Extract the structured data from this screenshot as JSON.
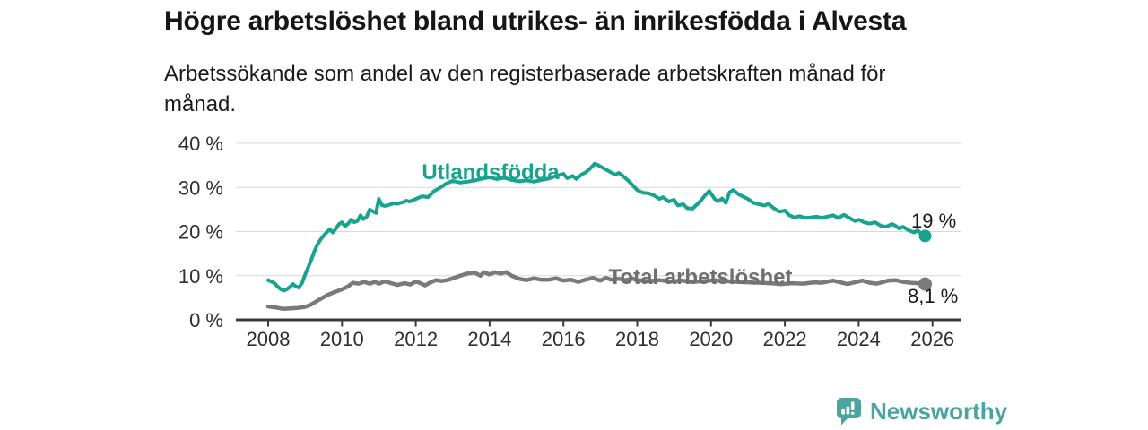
{
  "title": "Högre arbetslöshet bland utrikes- än inrikesfödda i Alvesta",
  "subtitle": "Arbetssökande som andel av den registerbaserade arbetskraften månad för månad.",
  "branding": {
    "logo_text": "Newsworthy"
  },
  "colors": {
    "accent_teal": "#18a38e",
    "line_gray": "#7a7a7a",
    "label_gray": "#6e6e6e",
    "axis": "#3a3a3a",
    "grid": "#d8d8d8",
    "text_dark": "#1a1a1a",
    "tick_text": "#2f2f2f",
    "brand_teal": "#4aa49f"
  },
  "chart_data": {
    "type": "line",
    "title": "Högre arbetslöshet bland utrikes- än inrikesfödda i Alvesta",
    "xlabel": "",
    "ylabel": "",
    "xlim": [
      2007.1,
      2026.8
    ],
    "ylim": [
      0,
      40
    ],
    "grid": "horizontal",
    "x_ticks": [
      2008,
      2010,
      2012,
      2014,
      2016,
      2018,
      2020,
      2022,
      2024,
      2026
    ],
    "x_tick_labels": [
      "2008",
      "2010",
      "2012",
      "2014",
      "2016",
      "2018",
      "2020",
      "2022",
      "2024",
      "2026"
    ],
    "y_ticks": [
      0,
      10,
      20,
      30,
      40
    ],
    "y_tick_labels": [
      "0 %",
      "10 %",
      "20 %",
      "30 %",
      "40 %"
    ],
    "series": [
      {
        "name": "Utlandsfödda",
        "color": "#18a38e",
        "end_label": "19 %",
        "points": [
          [
            2008.0,
            9.0
          ],
          [
            2008.08,
            8.7
          ],
          [
            2008.17,
            8.3
          ],
          [
            2008.25,
            7.6
          ],
          [
            2008.33,
            7.0
          ],
          [
            2008.42,
            6.6
          ],
          [
            2008.5,
            6.9
          ],
          [
            2008.58,
            7.4
          ],
          [
            2008.67,
            8.1
          ],
          [
            2008.75,
            7.6
          ],
          [
            2008.83,
            7.3
          ],
          [
            2008.92,
            8.4
          ],
          [
            2009.0,
            10.2
          ],
          [
            2009.08,
            11.8
          ],
          [
            2009.17,
            13.6
          ],
          [
            2009.25,
            15.5
          ],
          [
            2009.33,
            17.0
          ],
          [
            2009.42,
            18.2
          ],
          [
            2009.5,
            19.0
          ],
          [
            2009.58,
            19.8
          ],
          [
            2009.67,
            20.5
          ],
          [
            2009.75,
            19.8
          ],
          [
            2009.83,
            20.6
          ],
          [
            2009.92,
            21.7
          ],
          [
            2010.0,
            22.1
          ],
          [
            2010.08,
            21.2
          ],
          [
            2010.17,
            21.8
          ],
          [
            2010.25,
            22.7
          ],
          [
            2010.33,
            22.1
          ],
          [
            2010.42,
            22.4
          ],
          [
            2010.5,
            23.7
          ],
          [
            2010.58,
            22.8
          ],
          [
            2010.67,
            23.4
          ],
          [
            2010.75,
            25.0
          ],
          [
            2010.83,
            24.6
          ],
          [
            2010.92,
            24.2
          ],
          [
            2011.0,
            27.4
          ],
          [
            2011.08,
            26.0
          ],
          [
            2011.17,
            25.8
          ],
          [
            2011.25,
            26.0
          ],
          [
            2011.33,
            26.2
          ],
          [
            2011.42,
            26.4
          ],
          [
            2011.5,
            26.3
          ],
          [
            2011.58,
            26.5
          ],
          [
            2011.67,
            26.7
          ],
          [
            2011.75,
            27.0
          ],
          [
            2011.83,
            26.8
          ],
          [
            2011.92,
            27.1
          ],
          [
            2012.0,
            27.4
          ],
          [
            2012.17,
            28.0
          ],
          [
            2012.33,
            27.8
          ],
          [
            2012.5,
            29.2
          ],
          [
            2012.67,
            30.0
          ],
          [
            2012.83,
            30.9
          ],
          [
            2013.0,
            31.5
          ],
          [
            2013.2,
            31.1
          ],
          [
            2013.4,
            31.3
          ],
          [
            2013.6,
            31.6
          ],
          [
            2013.8,
            32.0
          ],
          [
            2014.0,
            32.3
          ],
          [
            2014.2,
            31.9
          ],
          [
            2014.4,
            32.2
          ],
          [
            2014.6,
            31.7
          ],
          [
            2014.8,
            31.4
          ],
          [
            2015.0,
            31.6
          ],
          [
            2015.2,
            31.3
          ],
          [
            2015.4,
            31.7
          ],
          [
            2015.6,
            32.0
          ],
          [
            2015.8,
            32.6
          ],
          [
            2016.0,
            33.1
          ],
          [
            2016.1,
            32.1
          ],
          [
            2016.25,
            32.6
          ],
          [
            2016.35,
            31.9
          ],
          [
            2016.5,
            33.0
          ],
          [
            2016.6,
            33.4
          ],
          [
            2016.7,
            34.1
          ],
          [
            2016.85,
            35.4
          ],
          [
            2016.95,
            35.0
          ],
          [
            2017.1,
            34.3
          ],
          [
            2017.25,
            33.6
          ],
          [
            2017.4,
            32.9
          ],
          [
            2017.5,
            33.3
          ],
          [
            2017.6,
            32.7
          ],
          [
            2017.75,
            31.6
          ],
          [
            2017.9,
            30.3
          ],
          [
            2018.0,
            29.4
          ],
          [
            2018.15,
            28.8
          ],
          [
            2018.3,
            28.7
          ],
          [
            2018.45,
            28.2
          ],
          [
            2018.6,
            27.4
          ],
          [
            2018.7,
            27.8
          ],
          [
            2018.85,
            26.8
          ],
          [
            2019.0,
            27.2
          ],
          [
            2019.1,
            25.9
          ],
          [
            2019.25,
            26.2
          ],
          [
            2019.35,
            25.3
          ],
          [
            2019.5,
            25.2
          ],
          [
            2019.6,
            26.0
          ],
          [
            2019.7,
            26.8
          ],
          [
            2019.85,
            28.3
          ],
          [
            2019.95,
            29.2
          ],
          [
            2020.1,
            27.4
          ],
          [
            2020.2,
            26.9
          ],
          [
            2020.3,
            27.5
          ],
          [
            2020.4,
            26.5
          ],
          [
            2020.5,
            28.9
          ],
          [
            2020.6,
            29.4
          ],
          [
            2020.75,
            28.4
          ],
          [
            2020.9,
            27.8
          ],
          [
            2021.0,
            27.4
          ],
          [
            2021.15,
            26.5
          ],
          [
            2021.3,
            26.2
          ],
          [
            2021.45,
            25.9
          ],
          [
            2021.55,
            26.3
          ],
          [
            2021.7,
            25.3
          ],
          [
            2021.85,
            24.5
          ],
          [
            2022.0,
            24.8
          ],
          [
            2022.1,
            23.8
          ],
          [
            2022.25,
            23.2
          ],
          [
            2022.4,
            23.5
          ],
          [
            2022.55,
            23.1
          ],
          [
            2022.7,
            23.2
          ],
          [
            2022.85,
            23.4
          ],
          [
            2023.0,
            23.1
          ],
          [
            2023.15,
            23.4
          ],
          [
            2023.3,
            23.7
          ],
          [
            2023.45,
            23.1
          ],
          [
            2023.6,
            23.8
          ],
          [
            2023.75,
            23.1
          ],
          [
            2023.9,
            22.4
          ],
          [
            2024.0,
            22.7
          ],
          [
            2024.15,
            22.1
          ],
          [
            2024.3,
            21.8
          ],
          [
            2024.45,
            22.1
          ],
          [
            2024.6,
            21.3
          ],
          [
            2024.75,
            21.1
          ],
          [
            2024.9,
            21.7
          ],
          [
            2025.0,
            21.3
          ],
          [
            2025.1,
            20.7
          ],
          [
            2025.2,
            21.1
          ],
          [
            2025.35,
            20.3
          ],
          [
            2025.5,
            19.8
          ],
          [
            2025.6,
            20.3
          ],
          [
            2025.7,
            19.3
          ],
          [
            2025.8,
            19.0
          ]
        ]
      },
      {
        "name": "Total arbetslöshet",
        "color": "#7a7a7a",
        "end_label": "8,1 %",
        "points": [
          [
            2008.0,
            3.0
          ],
          [
            2008.2,
            2.8
          ],
          [
            2008.4,
            2.5
          ],
          [
            2008.6,
            2.6
          ],
          [
            2008.8,
            2.7
          ],
          [
            2009.0,
            2.9
          ],
          [
            2009.15,
            3.4
          ],
          [
            2009.35,
            4.4
          ],
          [
            2009.6,
            5.6
          ],
          [
            2009.8,
            6.3
          ],
          [
            2010.0,
            6.9
          ],
          [
            2010.15,
            7.5
          ],
          [
            2010.3,
            8.4
          ],
          [
            2010.45,
            8.2
          ],
          [
            2010.6,
            8.6
          ],
          [
            2010.75,
            8.2
          ],
          [
            2010.9,
            8.6
          ],
          [
            2011.0,
            8.2
          ],
          [
            2011.15,
            8.7
          ],
          [
            2011.3,
            8.4
          ],
          [
            2011.5,
            7.9
          ],
          [
            2011.7,
            8.3
          ],
          [
            2011.85,
            8.0
          ],
          [
            2012.0,
            8.7
          ],
          [
            2012.1,
            8.4
          ],
          [
            2012.25,
            7.8
          ],
          [
            2012.4,
            8.5
          ],
          [
            2012.55,
            9.0
          ],
          [
            2012.7,
            8.8
          ],
          [
            2012.85,
            9.0
          ],
          [
            2013.0,
            9.4
          ],
          [
            2013.2,
            10.0
          ],
          [
            2013.4,
            10.5
          ],
          [
            2013.6,
            10.7
          ],
          [
            2013.75,
            10.0
          ],
          [
            2013.85,
            10.8
          ],
          [
            2014.0,
            10.3
          ],
          [
            2014.15,
            10.8
          ],
          [
            2014.3,
            10.5
          ],
          [
            2014.45,
            10.8
          ],
          [
            2014.6,
            10.0
          ],
          [
            2014.8,
            9.3
          ],
          [
            2015.0,
            9.0
          ],
          [
            2015.2,
            9.4
          ],
          [
            2015.4,
            9.1
          ],
          [
            2015.6,
            9.1
          ],
          [
            2015.8,
            9.4
          ],
          [
            2016.0,
            8.9
          ],
          [
            2016.2,
            9.1
          ],
          [
            2016.4,
            8.6
          ],
          [
            2016.6,
            9.1
          ],
          [
            2016.8,
            9.5
          ],
          [
            2017.0,
            8.9
          ],
          [
            2017.15,
            9.5
          ],
          [
            2017.3,
            9.1
          ],
          [
            2017.5,
            9.3
          ],
          [
            2017.7,
            9.0
          ],
          [
            2017.85,
            9.4
          ],
          [
            2018.0,
            9.0
          ],
          [
            2018.3,
            8.8
          ],
          [
            2018.6,
            9.0
          ],
          [
            2018.9,
            8.7
          ],
          [
            2019.2,
            8.9
          ],
          [
            2019.5,
            8.6
          ],
          [
            2019.8,
            8.8
          ],
          [
            2020.1,
            9.0
          ],
          [
            2020.4,
            8.8
          ],
          [
            2020.7,
            8.6
          ],
          [
            2021.0,
            8.5
          ],
          [
            2021.3,
            8.4
          ],
          [
            2021.6,
            8.3
          ],
          [
            2021.9,
            8.1
          ],
          [
            2022.2,
            8.3
          ],
          [
            2022.5,
            8.2
          ],
          [
            2022.8,
            8.5
          ],
          [
            2023.0,
            8.4
          ],
          [
            2023.3,
            8.9
          ],
          [
            2023.5,
            8.5
          ],
          [
            2023.7,
            8.1
          ],
          [
            2023.9,
            8.5
          ],
          [
            2024.1,
            8.9
          ],
          [
            2024.3,
            8.4
          ],
          [
            2024.5,
            8.2
          ],
          [
            2024.8,
            8.9
          ],
          [
            2025.0,
            9.0
          ],
          [
            2025.2,
            8.6
          ],
          [
            2025.4,
            8.4
          ],
          [
            2025.6,
            8.3
          ],
          [
            2025.8,
            8.1
          ]
        ]
      }
    ]
  }
}
